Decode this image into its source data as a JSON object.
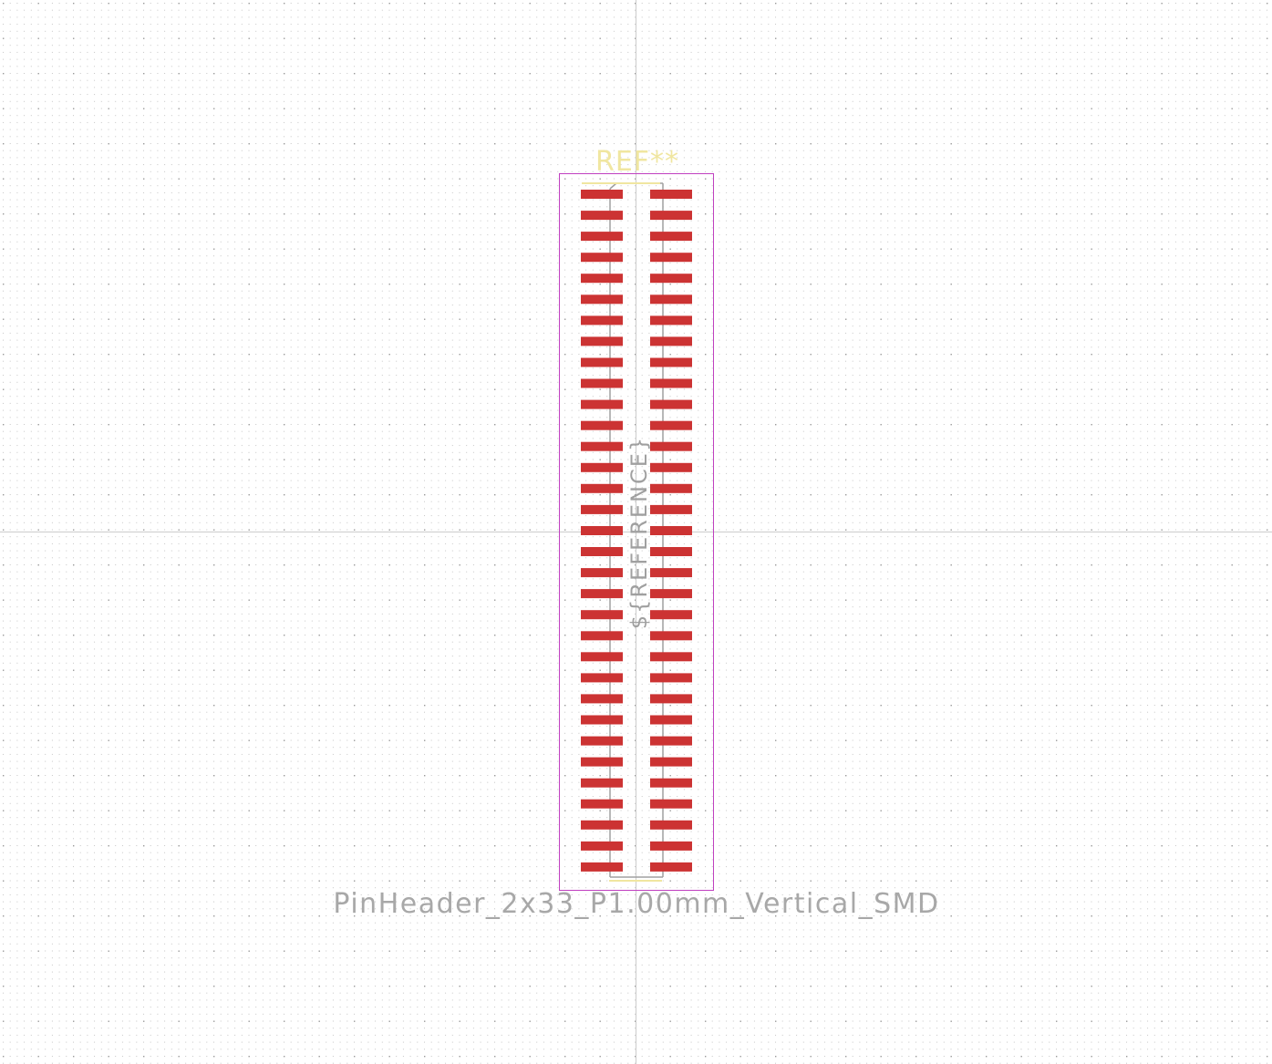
{
  "footprint": {
    "reference": "REF**",
    "value": "PinHeader_2x33_P1.00mm_Vertical_SMD",
    "fab_reference": "${REFERENCE}",
    "pin_rows": 33,
    "pin_columns": 2
  },
  "colors": {
    "background": "#ffffff",
    "grid_dot": "#b4b4b4",
    "axis": "#c8c8c8",
    "pad": "#cc3333",
    "silkscreen": "#f0e6a0",
    "courtyard": "#c040c0",
    "fab": "#a0a0a0",
    "value_text": "#a8a8a8"
  }
}
